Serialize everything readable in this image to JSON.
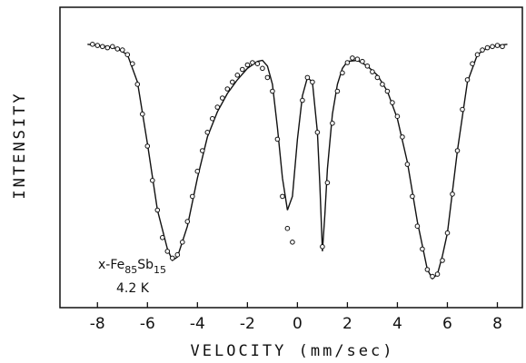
{
  "chart_data": {
    "type": "scatter",
    "title": "",
    "xlabel": "VELOCITY (mm/sec)",
    "ylabel": "INTENSITY",
    "xlim": [
      -9.5,
      9.0
    ],
    "ylim": [
      0.0,
      1.0
    ],
    "y_ticks_shown": false,
    "x_ticks": [
      -8,
      -6,
      -4,
      -2,
      0,
      2,
      4,
      6,
      8
    ],
    "x_tick_labels": [
      "-8",
      "-6",
      "-4",
      "-2",
      "0",
      "2",
      "4",
      "6",
      "8"
    ],
    "grid": false,
    "legend": "none",
    "annotation": {
      "sample_prefix": "x-Fe",
      "fe_sub": "85",
      "sb": "Sb",
      "sb_sub": "15",
      "temperature": "4.2 K"
    },
    "series": [
      {
        "kind": "points",
        "marker": "open-circle",
        "x": [
          -8.2,
          -8.0,
          -7.8,
          -7.6,
          -7.4,
          -7.2,
          -7.0,
          -6.8,
          -6.6,
          -6.4,
          -6.2,
          -6.0,
          -5.8,
          -5.6,
          -5.4,
          -5.2,
          -5.0,
          -4.8,
          -4.6,
          -4.4,
          -4.2,
          -4.0,
          -3.8,
          -3.6,
          -3.4,
          -3.2,
          -3.0,
          -2.8,
          -2.6,
          -2.4,
          -2.2,
          -2.0,
          -1.8,
          -1.6,
          -1.4,
          -1.2,
          -1.0,
          -0.8,
          -0.6,
          -0.4,
          -0.2,
          0.2,
          0.4,
          0.6,
          0.8,
          1.0,
          1.2,
          1.4,
          1.6,
          1.8,
          2.0,
          2.2,
          2.4,
          2.6,
          2.8,
          3.0,
          3.2,
          3.4,
          3.6,
          3.8,
          4.0,
          4.2,
          4.4,
          4.6,
          4.8,
          5.0,
          5.2,
          5.4,
          5.6,
          5.8,
          6.0,
          6.2,
          6.4,
          6.6,
          6.8,
          7.0,
          7.2,
          7.4,
          7.6,
          7.8,
          8.0,
          8.2
        ],
        "y": [
          0.965,
          0.96,
          0.955,
          0.95,
          0.955,
          0.945,
          0.94,
          0.92,
          0.88,
          0.79,
          0.66,
          0.52,
          0.37,
          0.24,
          0.12,
          0.06,
          0.03,
          0.045,
          0.1,
          0.19,
          0.3,
          0.41,
          0.5,
          0.58,
          0.64,
          0.69,
          0.73,
          0.77,
          0.8,
          0.83,
          0.855,
          0.875,
          0.885,
          0.88,
          0.86,
          0.82,
          0.76,
          0.55,
          0.3,
          0.16,
          0.1,
          0.72,
          0.82,
          0.8,
          0.58,
          0.08,
          0.36,
          0.62,
          0.76,
          0.84,
          0.885,
          0.905,
          0.9,
          0.89,
          0.87,
          0.845,
          0.82,
          0.79,
          0.76,
          0.71,
          0.65,
          0.56,
          0.44,
          0.3,
          0.17,
          0.07,
          -0.02,
          -0.05,
          -0.04,
          0.02,
          0.14,
          0.31,
          0.5,
          0.68,
          0.81,
          0.88,
          0.92,
          0.94,
          0.95,
          0.955,
          0.96,
          0.955
        ]
      },
      {
        "kind": "fit-curve",
        "x": [
          -8.4,
          -8.0,
          -7.6,
          -7.2,
          -6.8,
          -6.4,
          -6.0,
          -5.6,
          -5.2,
          -5.0,
          -4.8,
          -4.4,
          -4.0,
          -3.6,
          -3.2,
          -2.8,
          -2.4,
          -2.0,
          -1.6,
          -1.4,
          -1.2,
          -1.0,
          -0.8,
          -0.6,
          -0.4,
          -0.2,
          0.0,
          0.2,
          0.4,
          0.6,
          0.8,
          0.9,
          1.0,
          1.1,
          1.2,
          1.4,
          1.6,
          1.8,
          2.0,
          2.4,
          2.8,
          3.2,
          3.6,
          4.0,
          4.4,
          4.8,
          5.2,
          5.4,
          5.6,
          5.8,
          6.0,
          6.4,
          6.8,
          7.2,
          7.6,
          8.0,
          8.4
        ],
        "y": [
          0.965,
          0.96,
          0.955,
          0.945,
          0.92,
          0.8,
          0.53,
          0.24,
          0.07,
          0.02,
          0.035,
          0.17,
          0.38,
          0.56,
          0.67,
          0.75,
          0.81,
          0.86,
          0.89,
          0.895,
          0.87,
          0.79,
          0.6,
          0.38,
          0.24,
          0.3,
          0.55,
          0.74,
          0.82,
          0.8,
          0.58,
          0.35,
          0.06,
          0.22,
          0.42,
          0.66,
          0.79,
          0.86,
          0.89,
          0.895,
          0.87,
          0.83,
          0.76,
          0.64,
          0.45,
          0.19,
          -0.02,
          -0.06,
          -0.04,
          0.04,
          0.14,
          0.5,
          0.8,
          0.92,
          0.95,
          0.96,
          0.965
        ]
      }
    ]
  }
}
